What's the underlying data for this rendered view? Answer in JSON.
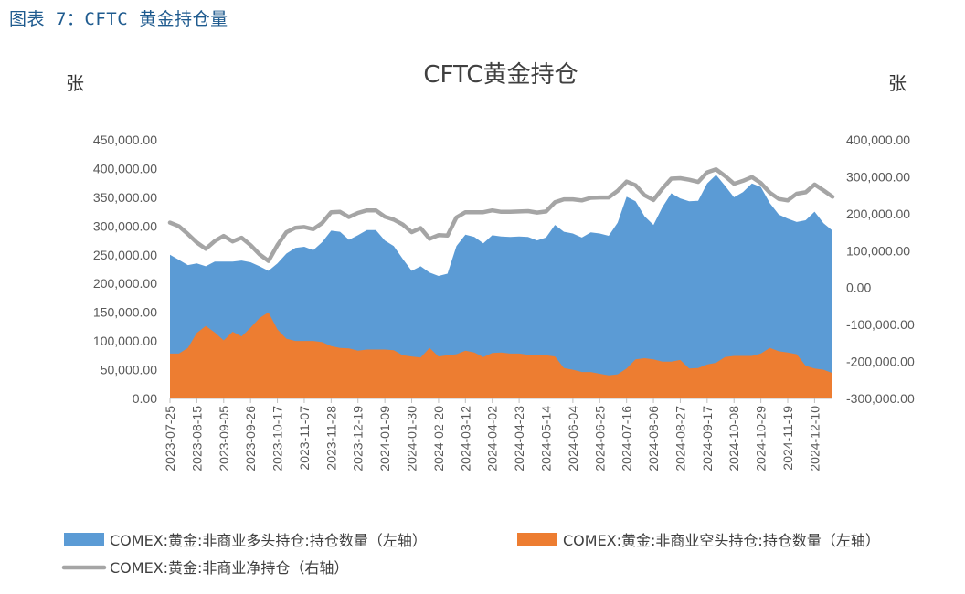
{
  "caption": "图表 7：CFTC 黄金持仓量",
  "chart_data": {
    "type": "area",
    "title": "CFTC黄金持仓",
    "left_unit": "张",
    "right_unit": "张",
    "left_axis": {
      "min": 0,
      "max": 450000,
      "step": 50000,
      "tick_labels": [
        "0.00",
        "50,000.00",
        "100,000.00",
        "150,000.00",
        "200,000.00",
        "250,000.00",
        "300,000.00",
        "350,000.00",
        "400,000.00",
        "450,000.00"
      ]
    },
    "right_axis": {
      "min": -300000,
      "max": 400000,
      "step": 100000,
      "tick_labels": [
        "-300,000.00",
        "-200,000.00",
        "-100,000.00",
        "0.00",
        "100,000.00",
        "200,000.00",
        "300,000.00",
        "400,000.00"
      ]
    },
    "x_tick_labels": [
      "2023-07-25",
      "2023-08-15",
      "2023-09-05",
      "2023-09-26",
      "2023-10-17",
      "2023-11-07",
      "2023-11-28",
      "2023-12-19",
      "2024-01-09",
      "2024-01-30",
      "2024-02-20",
      "2024-03-12",
      "2024-04-02",
      "2024-04-23",
      "2024-05-14",
      "2024-06-04",
      "2024-06-25",
      "2024-07-16",
      "2024-08-06",
      "2024-08-27",
      "2024-09-17",
      "2024-10-08",
      "2024-10-29",
      "2024-11-19",
      "2024-12-10"
    ],
    "series": [
      {
        "name": "COMEX:黄金:非商业多头持仓:持仓数量（左轴）",
        "axis": "left",
        "kind": "area",
        "color": "#5b9bd5",
        "values": [
          250000,
          241000,
          232000,
          235000,
          230000,
          238000,
          238000,
          238000,
          240000,
          237000,
          230000,
          222000,
          235000,
          252000,
          262000,
          264000,
          258000,
          272000,
          292000,
          290000,
          276000,
          284000,
          293000,
          293000,
          275000,
          265000,
          243000,
          222000,
          230000,
          219000,
          213000,
          217000,
          265000,
          285000,
          281000,
          270000,
          284000,
          282000,
          281000,
          282000,
          281000,
          275000,
          280000,
          302000,
          290000,
          287000,
          280000,
          289000,
          287000,
          283000,
          306000,
          351000,
          343000,
          317000,
          302000,
          333000,
          357000,
          348000,
          343000,
          344000,
          374000,
          389000,
          370000,
          350000,
          359000,
          374000,
          368000,
          340000,
          320000,
          313000,
          307000,
          310000,
          325000,
          305000,
          292000
        ]
      },
      {
        "name": "COMEX:黄金:非商业空头持仓:持仓数量（左轴）",
        "axis": "left",
        "kind": "area",
        "color": "#ed7d31",
        "values": [
          78000,
          78000,
          88000,
          114000,
          126000,
          115000,
          101000,
          116000,
          108000,
          123000,
          140000,
          150000,
          120000,
          104000,
          100000,
          100000,
          100000,
          98000,
          91000,
          88000,
          87000,
          83000,
          85000,
          85000,
          85000,
          84000,
          75000,
          73000,
          71000,
          88000,
          73000,
          75000,
          77000,
          83000,
          80000,
          72000,
          79000,
          80000,
          78000,
          78000,
          76000,
          75000,
          75000,
          73000,
          53000,
          50000,
          46000,
          46000,
          43000,
          40000,
          42000,
          52000,
          68000,
          70000,
          68000,
          64000,
          64000,
          67000,
          52000,
          53000,
          59000,
          62000,
          72000,
          74000,
          74000,
          74000,
          78000,
          88000,
          82000,
          80000,
          77000,
          57000,
          52000,
          50000,
          44000
        ]
      },
      {
        "name": "COMEX:黄金:非商业净持仓（右轴）",
        "axis": "right",
        "kind": "line",
        "color": "#a5a5a5",
        "values": [
          176000,
          166000,
          145000,
          122000,
          105000,
          126000,
          140000,
          125000,
          135000,
          115000,
          90000,
          72000,
          115000,
          150000,
          162000,
          164000,
          158000,
          175000,
          204000,
          205000,
          191000,
          202000,
          209000,
          209000,
          192000,
          184000,
          171000,
          150000,
          161000,
          132000,
          142000,
          141000,
          190000,
          204000,
          204000,
          204000,
          209000,
          205000,
          205000,
          206000,
          207000,
          203000,
          206000,
          231000,
          239000,
          239000,
          236000,
          243000,
          244000,
          244000,
          262000,
          287000,
          277000,
          250000,
          237000,
          268000,
          295000,
          296000,
          292000,
          286000,
          312000,
          320000,
          302000,
          281000,
          289000,
          299000,
          283000,
          257000,
          240000,
          236000,
          254000,
          258000,
          279000,
          263000,
          246000
        ]
      }
    ]
  }
}
